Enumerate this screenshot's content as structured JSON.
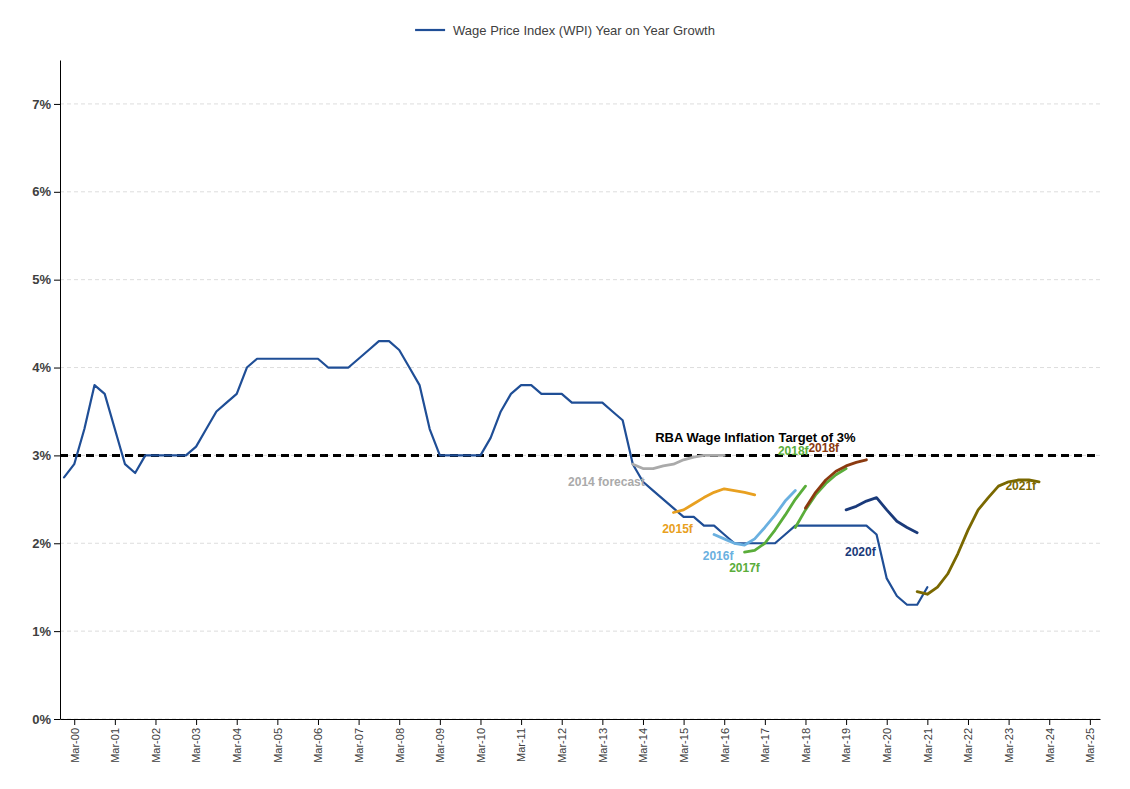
{
  "chart_data": {
    "type": "line",
    "series": [
      {
        "name": "Wage Price Index (WPI) Year on Year Growth",
        "color": "#1f4e96",
        "x": [
          2000,
          2000.25,
          2000.5,
          2000.75,
          2001,
          2001.25,
          2001.5,
          2001.75,
          2002,
          2002.25,
          2002.5,
          2002.75,
          2003,
          2003.25,
          2003.5,
          2003.75,
          2004,
          2004.25,
          2004.5,
          2004.75,
          2005,
          2005.25,
          2005.5,
          2005.75,
          2006,
          2006.25,
          2006.5,
          2006.75,
          2007,
          2007.25,
          2007.5,
          2007.75,
          2008,
          2008.25,
          2008.5,
          2008.75,
          2009,
          2009.25,
          2009.5,
          2009.75,
          2010,
          2010.25,
          2010.5,
          2010.75,
          2011,
          2011.25,
          2011.5,
          2011.75,
          2012,
          2012.25,
          2012.5,
          2012.75,
          2013,
          2013.25,
          2013.5,
          2013.75,
          2014,
          2014.25,
          2014.5,
          2014.75,
          2015,
          2015.25,
          2015.5,
          2015.75,
          2016,
          2016.25,
          2016.5,
          2016.75,
          2017,
          2017.25,
          2017.5,
          2017.75,
          2018,
          2018.25,
          2018.5,
          2018.75,
          2019,
          2019.25,
          2019.5,
          2019.75,
          2020,
          2020.25,
          2020.5,
          2020.75,
          2021,
          2021.25
        ],
        "values": [
          0.0275,
          0.029,
          0.033,
          0.038,
          0.037,
          0.033,
          0.029,
          0.028,
          0.03,
          0.03,
          0.03,
          0.03,
          0.03,
          0.031,
          0.033,
          0.035,
          0.036,
          0.037,
          0.04,
          0.041,
          0.041,
          0.041,
          0.041,
          0.041,
          0.041,
          0.041,
          0.04,
          0.04,
          0.04,
          0.041,
          0.042,
          0.043,
          0.043,
          0.042,
          0.04,
          0.038,
          0.033,
          0.03,
          0.03,
          0.03,
          0.03,
          0.03,
          0.032,
          0.035,
          0.037,
          0.038,
          0.038,
          0.037,
          0.037,
          0.037,
          0.036,
          0.036,
          0.036,
          0.036,
          0.035,
          0.034,
          0.029,
          0.027,
          0.026,
          0.025,
          0.024,
          0.023,
          0.023,
          0.022,
          0.022,
          0.021,
          0.02,
          0.02,
          0.02,
          0.02,
          0.02,
          0.021,
          0.022,
          0.022,
          0.022,
          0.022,
          0.022,
          0.022,
          0.022,
          0.022,
          0.021,
          0.016,
          0.014,
          0.013,
          0.013,
          0.015
        ]
      },
      {
        "color": "#aaaaaa",
        "x": [
          2014.0,
          2014.25,
          2014.5,
          2014.75,
          2015.0,
          2015.25,
          2015.5,
          2015.75,
          2016.0,
          2016.25
        ],
        "values": [
          0.029,
          0.0285,
          0.0285,
          0.0288,
          0.029,
          0.0295,
          0.0298,
          0.03,
          0.03,
          0.03
        ]
      },
      {
        "color": "#e8a020",
        "x": [
          2015.0,
          2015.25,
          2015.5,
          2015.75,
          2016.0,
          2016.25,
          2016.5,
          2016.75,
          2017.0
        ],
        "values": [
          0.0235,
          0.0238,
          0.0245,
          0.0252,
          0.0258,
          0.0262,
          0.026,
          0.0258,
          0.0255
        ]
      },
      {
        "color": "#6ab0e0",
        "x": [
          2016.0,
          2016.25,
          2016.5,
          2016.75,
          2017.0,
          2017.25,
          2017.5,
          2017.75,
          2018.0
        ],
        "values": [
          0.021,
          0.0205,
          0.02,
          0.0198,
          0.0205,
          0.0218,
          0.0232,
          0.0248,
          0.026
        ]
      },
      {
        "color": "#5aad3a",
        "x": [
          2016.75,
          2017.0,
          2017.25,
          2017.5,
          2017.75,
          2018.0,
          2018.25
        ],
        "values": [
          0.019,
          0.0192,
          0.02,
          0.0215,
          0.0232,
          0.025,
          0.0265
        ]
      },
      {
        "color": "#5aad3a",
        "x": [
          2018.0,
          2018.25,
          2018.5,
          2018.75,
          2019.0,
          2019.25
        ],
        "values": [
          0.0218,
          0.0238,
          0.0255,
          0.0268,
          0.0278,
          0.0285
        ]
      },
      {
        "color": "#8b3a10",
        "x": [
          2018.25,
          2018.5,
          2018.75,
          2019.0,
          2019.25,
          2019.5,
          2019.75
        ],
        "values": [
          0.024,
          0.0258,
          0.0272,
          0.0282,
          0.0288,
          0.0292,
          0.0295
        ]
      },
      {
        "color": "#1a3a7a",
        "x": [
          2019.25,
          2019.5,
          2019.75,
          2020.0,
          2020.25,
          2020.5,
          2020.75,
          2021.0
        ],
        "values": [
          0.0238,
          0.0242,
          0.0248,
          0.0252,
          0.0238,
          0.0225,
          0.0218,
          0.0212
        ]
      },
      {
        "color": "#7a6800",
        "x": [
          2021.0,
          2021.25,
          2021.5,
          2021.75,
          2022.0,
          2022.25,
          2022.5,
          2022.75,
          2023.0,
          2023.25,
          2023.5,
          2023.75,
          2024.0
        ],
        "values": [
          0.0145,
          0.0142,
          0.015,
          0.0165,
          0.0188,
          0.0215,
          0.0238,
          0.0252,
          0.0265,
          0.027,
          0.0272,
          0.0272,
          0.027
        ]
      }
    ],
    "reference_lines": [
      {
        "value": 0.03,
        "color": "#000000",
        "line_style": "dashed"
      }
    ],
    "annotations": [
      {
        "text": "RBA Wage Inflation Target of 3%",
        "x": 2014.55,
        "y": 0.0312,
        "color": "#000000"
      },
      {
        "text": "2014 forecast",
        "x": 2013.35,
        "y": 0.027,
        "color": "#aaaaaa"
      },
      {
        "text": "2015f",
        "x": 2015.1,
        "y": 0.0216,
        "color": "#e8a020"
      },
      {
        "text": "2016f",
        "x": 2016.1,
        "y": 0.0185,
        "color": "#6ab0e0"
      },
      {
        "text": "2017f",
        "x": 2016.75,
        "y": 0.0172,
        "color": "#5aad3a"
      },
      {
        "text": "2018f",
        "x": 2017.95,
        "y": 0.0305,
        "color": "#5aad3a"
      },
      {
        "text": "2018f",
        "x": 2018.7,
        "y": 0.0308,
        "color": "#8b3a10"
      },
      {
        "text": "2020f",
        "x": 2019.6,
        "y": 0.019,
        "color": "#1a3a7a"
      },
      {
        "text": "2021f",
        "x": 2023.55,
        "y": 0.0265,
        "color": "#7a6800"
      }
    ],
    "xlim": [
      1999.9,
      2025.5
    ],
    "xticks": [
      {
        "value": 2000.25,
        "label": "Mar-00"
      },
      {
        "value": 2001.25,
        "label": "Mar-01"
      },
      {
        "value": 2002.25,
        "label": "Mar-02"
      },
      {
        "value": 2003.25,
        "label": "Mar-03"
      },
      {
        "value": 2004.25,
        "label": "Mar-04"
      },
      {
        "value": 2005.25,
        "label": "Mar-05"
      },
      {
        "value": 2006.25,
        "label": "Mar-06"
      },
      {
        "value": 2007.25,
        "label": "Mar-07"
      },
      {
        "value": 2008.25,
        "label": "Mar-08"
      },
      {
        "value": 2009.25,
        "label": "Mar-09"
      },
      {
        "value": 2010.25,
        "label": "Mar-10"
      },
      {
        "value": 2011.25,
        "label": "Mar-11"
      },
      {
        "value": 2012.25,
        "label": "Mar-12"
      },
      {
        "value": 2013.25,
        "label": "Mar-13"
      },
      {
        "value": 2014.25,
        "label": "Mar-14"
      },
      {
        "value": 2015.25,
        "label": "Mar-15"
      },
      {
        "value": 2016.25,
        "label": "Mar-16"
      },
      {
        "value": 2017.25,
        "label": "Mar-17"
      },
      {
        "value": 2018.25,
        "label": "Mar-18"
      },
      {
        "value": 2019.25,
        "label": "Mar-19"
      },
      {
        "value": 2020.25,
        "label": "Mar-20"
      },
      {
        "value": 2021.25,
        "label": "Mar-21"
      },
      {
        "value": 2022.25,
        "label": "Mar-22"
      },
      {
        "value": 2023.25,
        "label": "Mar-23"
      },
      {
        "value": 2024.25,
        "label": "Mar-24"
      },
      {
        "value": 2025.25,
        "label": "Mar-25"
      }
    ],
    "ylim": [
      0.0,
      0.075
    ],
    "yticks": [
      {
        "value": 0.0,
        "label": "0%"
      },
      {
        "value": 0.01,
        "label": "1%"
      },
      {
        "value": 0.02,
        "label": "2%"
      },
      {
        "value": 0.03,
        "label": "3%"
      },
      {
        "value": 0.04,
        "label": "4%"
      },
      {
        "value": 0.05,
        "label": "5%"
      },
      {
        "value": 0.06,
        "label": "6%"
      },
      {
        "value": 0.07,
        "label": "7%"
      }
    ],
    "grid": true,
    "legend": "top"
  }
}
